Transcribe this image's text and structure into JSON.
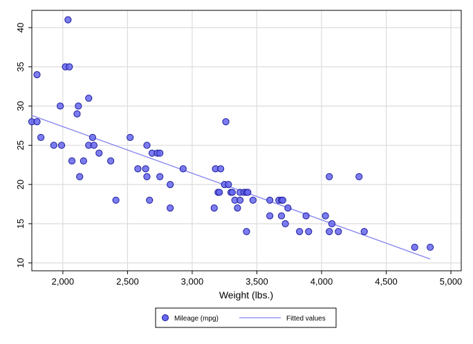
{
  "chart_data": {
    "type": "scatter",
    "title": "",
    "xlabel": "Weight (lbs.)",
    "ylabel": "",
    "xlim": [
      1760,
      5080
    ],
    "ylim": [
      9,
      42.2
    ],
    "x_ticks": [
      2000,
      2500,
      3000,
      3500,
      4000,
      4500,
      5000
    ],
    "x_tick_labels": [
      "2,000",
      "2,500",
      "3,000",
      "3,500",
      "4,000",
      "4,500",
      "5,000"
    ],
    "y_ticks": [
      10,
      15,
      20,
      25,
      30,
      35,
      40
    ],
    "y_tick_labels": [
      "10",
      "15",
      "20",
      "25",
      "30",
      "35",
      "40"
    ],
    "grid": true,
    "legend_position": "bottom",
    "colors": {
      "marker_fill": "#6666ee",
      "marker_edge": "#1a1a99",
      "fit_line": "#8080f0",
      "grid": "#dcdcdc",
      "axis": "#000000"
    },
    "series": [
      {
        "name": "Mileage (mpg)",
        "kind": "scatter",
        "points": [
          [
            1760,
            28
          ],
          [
            1800,
            28
          ],
          [
            1800,
            34
          ],
          [
            1830,
            26
          ],
          [
            1930,
            25
          ],
          [
            1980,
            30
          ],
          [
            1990,
            25
          ],
          [
            2020,
            35
          ],
          [
            2040,
            41
          ],
          [
            2050,
            35
          ],
          [
            2070,
            23
          ],
          [
            2110,
            29
          ],
          [
            2120,
            30
          ],
          [
            2130,
            21
          ],
          [
            2160,
            23
          ],
          [
            2200,
            31
          ],
          [
            2200,
            25
          ],
          [
            2230,
            26
          ],
          [
            2240,
            25
          ],
          [
            2280,
            24
          ],
          [
            2370,
            23
          ],
          [
            2410,
            18
          ],
          [
            2520,
            26
          ],
          [
            2580,
            22
          ],
          [
            2640,
            22
          ],
          [
            2650,
            25
          ],
          [
            2650,
            21
          ],
          [
            2670,
            18
          ],
          [
            2690,
            24
          ],
          [
            2730,
            24
          ],
          [
            2750,
            24
          ],
          [
            2750,
            21
          ],
          [
            2830,
            20
          ],
          [
            2830,
            17
          ],
          [
            2930,
            22
          ],
          [
            3170,
            17
          ],
          [
            3180,
            22
          ],
          [
            3200,
            19
          ],
          [
            3210,
            19
          ],
          [
            3220,
            22
          ],
          [
            3250,
            20
          ],
          [
            3260,
            28
          ],
          [
            3280,
            20
          ],
          [
            3300,
            19
          ],
          [
            3310,
            19
          ],
          [
            3330,
            18
          ],
          [
            3350,
            17
          ],
          [
            3370,
            19
          ],
          [
            3370,
            18
          ],
          [
            3400,
            19
          ],
          [
            3420,
            14
          ],
          [
            3420,
            19
          ],
          [
            3430,
            19
          ],
          [
            3470,
            18
          ],
          [
            3600,
            18
          ],
          [
            3600,
            16
          ],
          [
            3670,
            18
          ],
          [
            3690,
            16
          ],
          [
            3690,
            18
          ],
          [
            3700,
            18
          ],
          [
            3720,
            15
          ],
          [
            3740,
            17
          ],
          [
            3830,
            14
          ],
          [
            3880,
            16
          ],
          [
            3900,
            14
          ],
          [
            4030,
            16
          ],
          [
            4060,
            21
          ],
          [
            4060,
            14
          ],
          [
            4080,
            15
          ],
          [
            4130,
            14
          ],
          [
            4290,
            21
          ],
          [
            4330,
            14
          ],
          [
            4720,
            12
          ],
          [
            4840,
            12
          ]
        ]
      },
      {
        "name": "Fitted values",
        "kind": "line",
        "points": [
          [
            1760,
            28.8
          ],
          [
            4840,
            10.5
          ]
        ]
      }
    ]
  }
}
